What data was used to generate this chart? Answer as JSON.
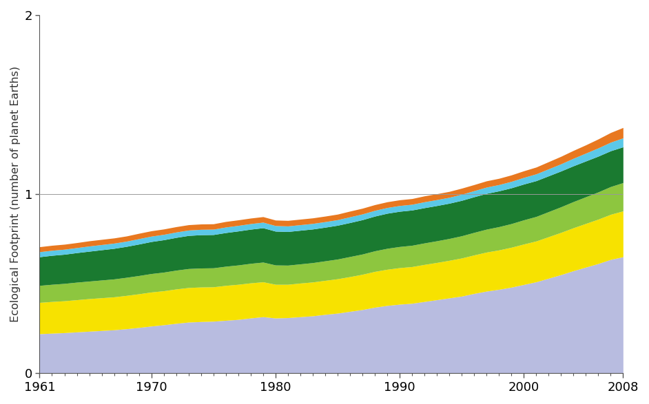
{
  "years": [
    1961,
    1962,
    1963,
    1964,
    1965,
    1966,
    1967,
    1968,
    1969,
    1970,
    1971,
    1972,
    1973,
    1974,
    1975,
    1976,
    1977,
    1978,
    1979,
    1980,
    1981,
    1982,
    1983,
    1984,
    1985,
    1986,
    1987,
    1988,
    1989,
    1990,
    1991,
    1992,
    1993,
    1994,
    1995,
    1996,
    1997,
    1998,
    1999,
    2000,
    2001,
    2002,
    2003,
    2004,
    2005,
    2006,
    2007,
    2008
  ],
  "layer_lavender": [
    0.22,
    0.223,
    0.226,
    0.23,
    0.234,
    0.238,
    0.242,
    0.248,
    0.255,
    0.263,
    0.27,
    0.278,
    0.285,
    0.288,
    0.29,
    0.295,
    0.3,
    0.308,
    0.315,
    0.308,
    0.31,
    0.315,
    0.32,
    0.328,
    0.335,
    0.345,
    0.355,
    0.368,
    0.378,
    0.385,
    0.39,
    0.4,
    0.41,
    0.42,
    0.43,
    0.445,
    0.458,
    0.468,
    0.48,
    0.495,
    0.51,
    0.53,
    0.55,
    0.572,
    0.592,
    0.612,
    0.635,
    0.65
  ],
  "layer_yellow": [
    0.175,
    0.177,
    0.178,
    0.18,
    0.182,
    0.183,
    0.184,
    0.186,
    0.188,
    0.19,
    0.19,
    0.192,
    0.193,
    0.193,
    0.192,
    0.195,
    0.196,
    0.196,
    0.195,
    0.188,
    0.186,
    0.188,
    0.189,
    0.19,
    0.192,
    0.194,
    0.197,
    0.2,
    0.202,
    0.204,
    0.205,
    0.207,
    0.208,
    0.21,
    0.213,
    0.215,
    0.218,
    0.22,
    0.223,
    0.226,
    0.228,
    0.232,
    0.236,
    0.24,
    0.244,
    0.248,
    0.252,
    0.256
  ],
  "layer_light_green": [
    0.095,
    0.096,
    0.097,
    0.098,
    0.098,
    0.099,
    0.1,
    0.101,
    0.102,
    0.103,
    0.104,
    0.105,
    0.106,
    0.106,
    0.106,
    0.107,
    0.108,
    0.109,
    0.11,
    0.108,
    0.107,
    0.107,
    0.108,
    0.109,
    0.11,
    0.112,
    0.113,
    0.115,
    0.117,
    0.118,
    0.119,
    0.12,
    0.121,
    0.122,
    0.124,
    0.126,
    0.128,
    0.13,
    0.132,
    0.135,
    0.137,
    0.14,
    0.143,
    0.146,
    0.149,
    0.152,
    0.155,
    0.158
  ],
  "layer_dark_green": [
    0.16,
    0.162,
    0.163,
    0.165,
    0.167,
    0.169,
    0.171,
    0.173,
    0.176,
    0.179,
    0.181,
    0.183,
    0.185,
    0.186,
    0.186,
    0.188,
    0.19,
    0.191,
    0.192,
    0.189,
    0.188,
    0.188,
    0.188,
    0.188,
    0.189,
    0.19,
    0.192,
    0.194,
    0.196,
    0.197,
    0.197,
    0.197,
    0.197,
    0.197,
    0.198,
    0.199,
    0.2,
    0.2,
    0.2,
    0.2,
    0.2,
    0.2,
    0.2,
    0.2,
    0.2,
    0.2,
    0.2,
    0.2
  ],
  "layer_cyan": [
    0.028,
    0.028,
    0.028,
    0.028,
    0.029,
    0.029,
    0.029,
    0.029,
    0.03,
    0.03,
    0.03,
    0.03,
    0.03,
    0.03,
    0.03,
    0.031,
    0.031,
    0.031,
    0.031,
    0.031,
    0.031,
    0.031,
    0.031,
    0.031,
    0.031,
    0.032,
    0.032,
    0.032,
    0.032,
    0.032,
    0.032,
    0.033,
    0.033,
    0.033,
    0.034,
    0.034,
    0.035,
    0.035,
    0.036,
    0.037,
    0.038,
    0.039,
    0.04,
    0.042,
    0.044,
    0.046,
    0.048,
    0.05
  ],
  "layer_orange": [
    0.028,
    0.028,
    0.028,
    0.028,
    0.029,
    0.029,
    0.029,
    0.029,
    0.03,
    0.03,
    0.03,
    0.03,
    0.03,
    0.03,
    0.03,
    0.031,
    0.031,
    0.031,
    0.031,
    0.031,
    0.031,
    0.031,
    0.031,
    0.031,
    0.031,
    0.032,
    0.032,
    0.032,
    0.032,
    0.032,
    0.032,
    0.033,
    0.033,
    0.033,
    0.034,
    0.034,
    0.035,
    0.035,
    0.036,
    0.037,
    0.038,
    0.04,
    0.042,
    0.044,
    0.046,
    0.05,
    0.054,
    0.058
  ],
  "color_lavender": "#b8bce0",
  "color_yellow": "#f7e200",
  "color_light_green": "#8dc63f",
  "color_dark_green": "#1a7a30",
  "color_cyan": "#5bc8e8",
  "color_orange": "#e87820",
  "ylabel": "Ecological Footprint (number of planet Earths)",
  "ylim": [
    0,
    2
  ],
  "yticks": [
    0,
    1,
    2
  ],
  "hline_y": 1.0,
  "hline_color": "#999999",
  "background_color": "#ffffff",
  "spine_color": "#555555",
  "tick_color": "#555555"
}
